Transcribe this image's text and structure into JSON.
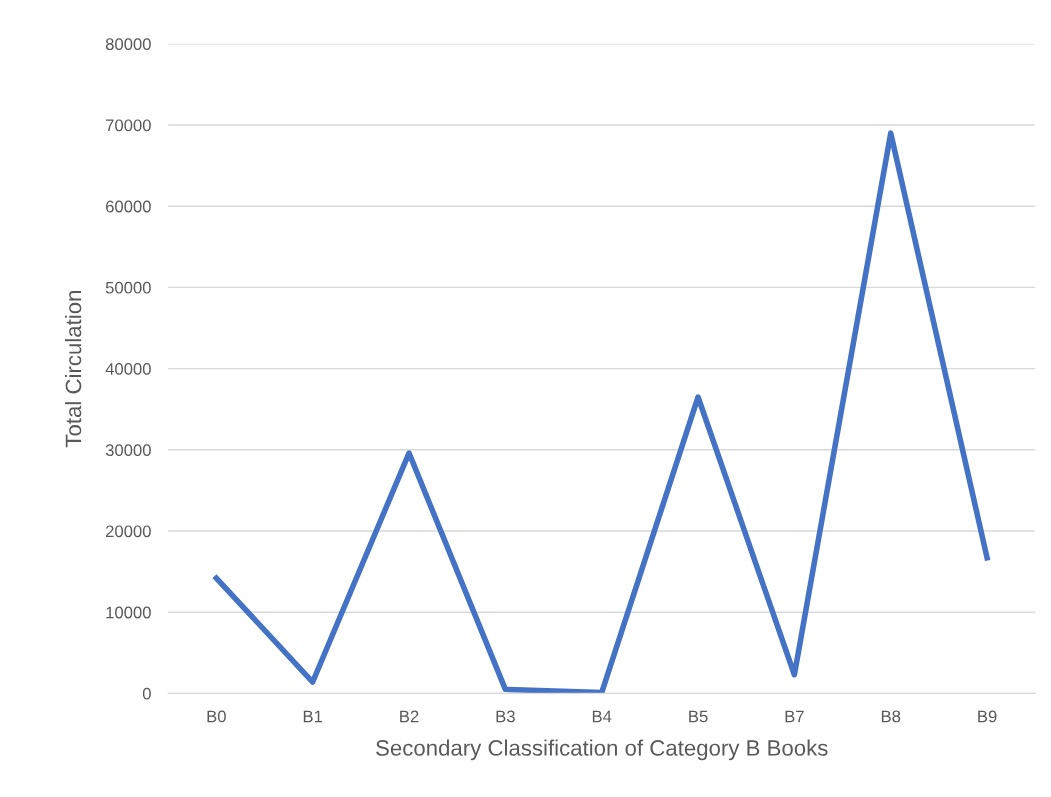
{
  "chart_data": {
    "type": "line",
    "xlabel": "Secondary Classification of Category B Books",
    "ylabel": "Total Circulation",
    "categories": [
      "B0",
      "B1",
      "B2",
      "B3",
      "B4",
      "B5",
      "B7",
      "B8",
      "B9"
    ],
    "series": [
      {
        "color": "#4472c4",
        "values": [
          14200,
          1400,
          29600,
          500,
          100,
          36500,
          2300,
          69000,
          16700
        ]
      }
    ],
    "ylim": [
      0,
      80000
    ],
    "yticks": [
      0,
      10000,
      20000,
      30000,
      40000,
      50000,
      60000,
      70000,
      80000
    ],
    "grid": "y",
    "marker": "none",
    "line_style": "solid"
  }
}
